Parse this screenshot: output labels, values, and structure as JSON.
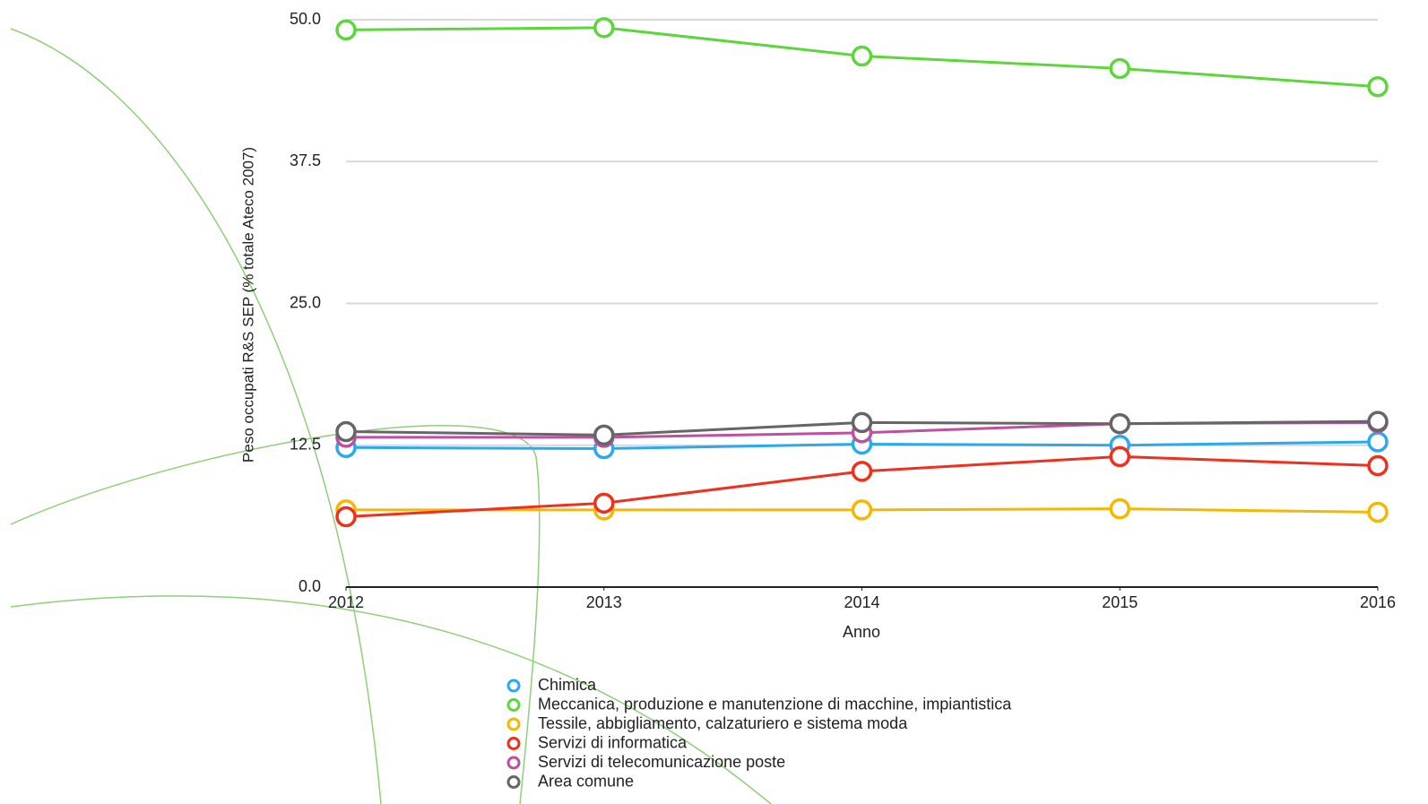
{
  "chart_data": {
    "type": "line",
    "x_label": "Anno",
    "y_label": "Peso occupati R&S SEP (% totale Ateco 2007)",
    "x": [
      2012,
      2013,
      2014,
      2015,
      2016
    ],
    "xlim": [
      2012,
      2016
    ],
    "xticks": [
      2012,
      2013,
      2014,
      2015,
      2016
    ],
    "ylim": [
      0,
      50
    ],
    "yticks": [
      {
        "value": 0,
        "label": "0.0"
      },
      12.5,
      {
        "value": 25,
        "label": "25.0"
      },
      37.5,
      {
        "value": 50,
        "label": "50.0"
      }
    ],
    "grid": true,
    "series": [
      {
        "name": "Chimica",
        "color": "#2aa9f0",
        "values": [
          12.3,
          12.2,
          12.6,
          12.5,
          12.8
        ]
      },
      {
        "name": "Meccanica, produzione e manutenzione di macchine, impiantistica",
        "color": "#5cd63a",
        "values": [
          49.1,
          49.3,
          46.8,
          45.7,
          44.1
        ]
      },
      {
        "name": "Tessile, abbigliamento, calzaturiero e sistema moda",
        "color": "#f5b800",
        "values": [
          6.8,
          6.8,
          6.8,
          6.9,
          6.6
        ]
      },
      {
        "name": "Servizi di informatica",
        "color": "#f0301c",
        "values": [
          6.2,
          7.4,
          10.2,
          11.5,
          10.7
        ]
      },
      {
        "name": "Servizi di telecomunicazione poste",
        "color": "#c04fa0",
        "values": [
          13.2,
          13.2,
          13.6,
          14.4,
          14.5
        ]
      },
      {
        "name": "Area comune",
        "color": "#666666",
        "values": [
          13.7,
          13.4,
          14.5,
          14.4,
          14.6
        ]
      }
    ]
  }
}
